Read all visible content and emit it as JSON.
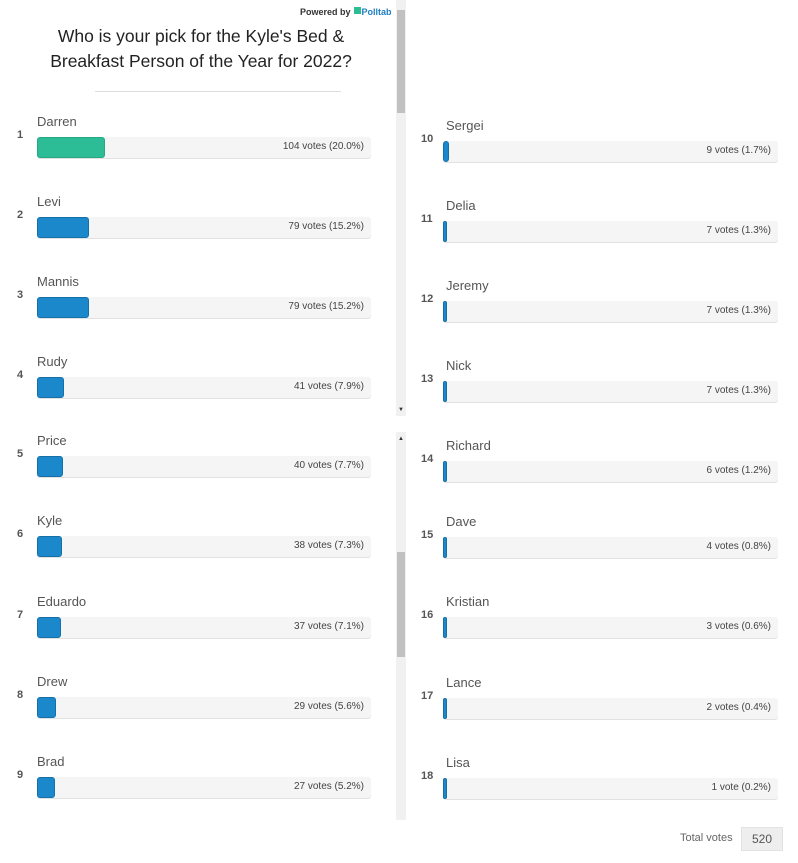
{
  "header": {
    "powered_by": "Powered by",
    "brand": "Polltab",
    "title": "Who is your pick for the Kyle's Bed & Breakfast Person of the Year for 2022?"
  },
  "colors": {
    "leader": "#2dbd96",
    "bar": "#1c88cc",
    "track": "#f5f5f5"
  },
  "results": [
    {
      "rank": "1",
      "name": "Darren",
      "votes_text": "104 votes (20.0%)",
      "percent": 20.0
    },
    {
      "rank": "2",
      "name": "Levi",
      "votes_text": "79 votes (15.2%)",
      "percent": 15.2
    },
    {
      "rank": "3",
      "name": "Mannis",
      "votes_text": "79 votes (15.2%)",
      "percent": 15.2
    },
    {
      "rank": "4",
      "name": "Rudy",
      "votes_text": "41 votes (7.9%)",
      "percent": 7.9
    },
    {
      "rank": "5",
      "name": "Price",
      "votes_text": "40 votes (7.7%)",
      "percent": 7.7
    },
    {
      "rank": "6",
      "name": "Kyle",
      "votes_text": "38 votes (7.3%)",
      "percent": 7.3
    },
    {
      "rank": "7",
      "name": "Eduardo",
      "votes_text": "37 votes (7.1%)",
      "percent": 7.1
    },
    {
      "rank": "8",
      "name": "Drew",
      "votes_text": "29 votes (5.6%)",
      "percent": 5.6
    },
    {
      "rank": "9",
      "name": "Brad",
      "votes_text": "27 votes (5.2%)",
      "percent": 5.2
    },
    {
      "rank": "10",
      "name": "Sergei",
      "votes_text": "9 votes (1.7%)",
      "percent": 1.7
    },
    {
      "rank": "11",
      "name": "Delia",
      "votes_text": "7 votes (1.3%)",
      "percent": 1.3
    },
    {
      "rank": "12",
      "name": "Jeremy",
      "votes_text": "7 votes (1.3%)",
      "percent": 1.3
    },
    {
      "rank": "13",
      "name": "Nick",
      "votes_text": "7 votes (1.3%)",
      "percent": 1.3
    },
    {
      "rank": "14",
      "name": "Richard",
      "votes_text": "6 votes (1.2%)",
      "percent": 1.2
    },
    {
      "rank": "15",
      "name": "Dave",
      "votes_text": "4 votes (0.8%)",
      "percent": 0.8
    },
    {
      "rank": "16",
      "name": "Kristian",
      "votes_text": "3 votes (0.6%)",
      "percent": 0.6
    },
    {
      "rank": "17",
      "name": "Lance",
      "votes_text": "2 votes (0.4%)",
      "percent": 0.4
    },
    {
      "rank": "18",
      "name": "Lisa",
      "votes_text": "1 vote (0.2%)",
      "percent": 0.2
    }
  ],
  "footer": {
    "total_label": "Total votes",
    "total_value": "520"
  }
}
